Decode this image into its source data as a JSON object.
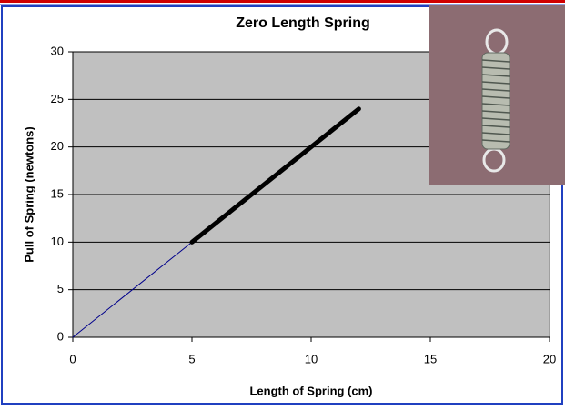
{
  "chart_data": {
    "type": "line",
    "title": "Zero Length Spring",
    "x_label": "Length of Spring (cm)",
    "y_label": "Pull of Spring (newtons)",
    "xlim": [
      0,
      20
    ],
    "xticks": [
      0,
      5,
      10,
      15,
      20
    ],
    "ylim": [
      0,
      30
    ],
    "yticks": [
      0,
      5,
      10,
      15,
      20,
      25,
      30
    ],
    "grid": true,
    "series": [
      {
        "color": "#00008b",
        "x": [
          0,
          5
        ],
        "values": [
          0,
          10
        ],
        "width": 1
      },
      {
        "color": "#000000",
        "x": [
          5,
          12
        ],
        "values": [
          10,
          24
        ],
        "width": 5
      }
    ]
  }
}
